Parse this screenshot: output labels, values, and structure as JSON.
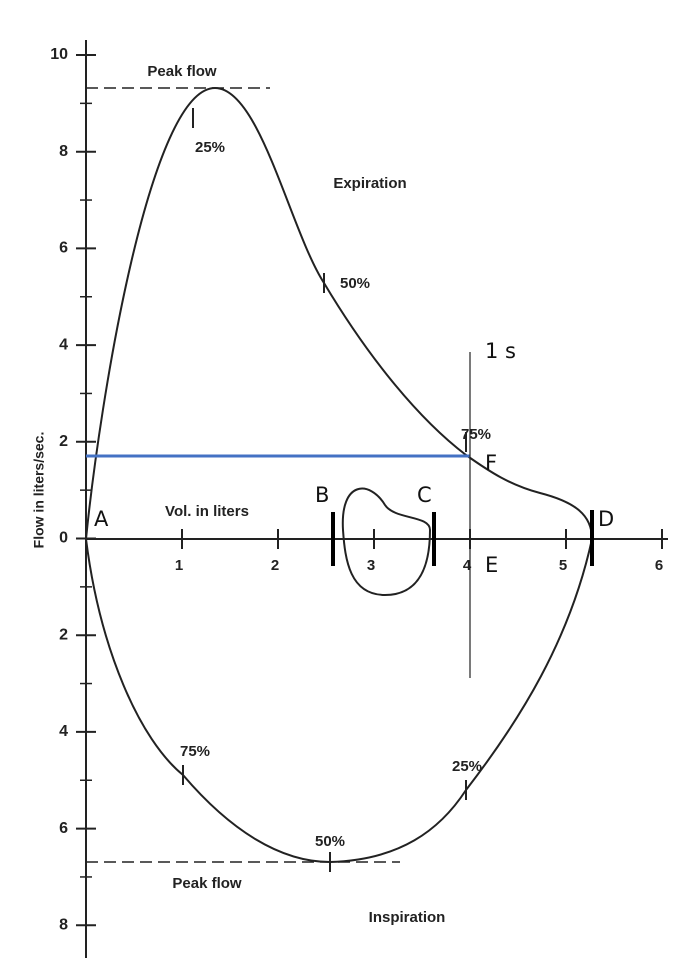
{
  "axes": {
    "y_title": "Flow in liters/sec.",
    "x_title": "Vol. in liters",
    "y_labels": [
      "10",
      "8",
      "6",
      "4",
      "2",
      "0",
      "2",
      "4",
      "6",
      "8"
    ],
    "x_labels": [
      "1",
      "2",
      "3",
      "4",
      "5",
      "6"
    ]
  },
  "expiration": {
    "peak_flow": "Peak flow",
    "label": "Expiration",
    "p25": "25%",
    "p50": "50%",
    "p75": "75%"
  },
  "inspiration": {
    "peak_flow": "Peak flow",
    "label": "Inspiration",
    "p25": "25%",
    "p50": "50%",
    "p75": "75%"
  },
  "points": {
    "a": "A",
    "b": "B",
    "c": "C",
    "d": "D",
    "e": "E",
    "f": "F"
  },
  "time_marker": "1 s"
}
